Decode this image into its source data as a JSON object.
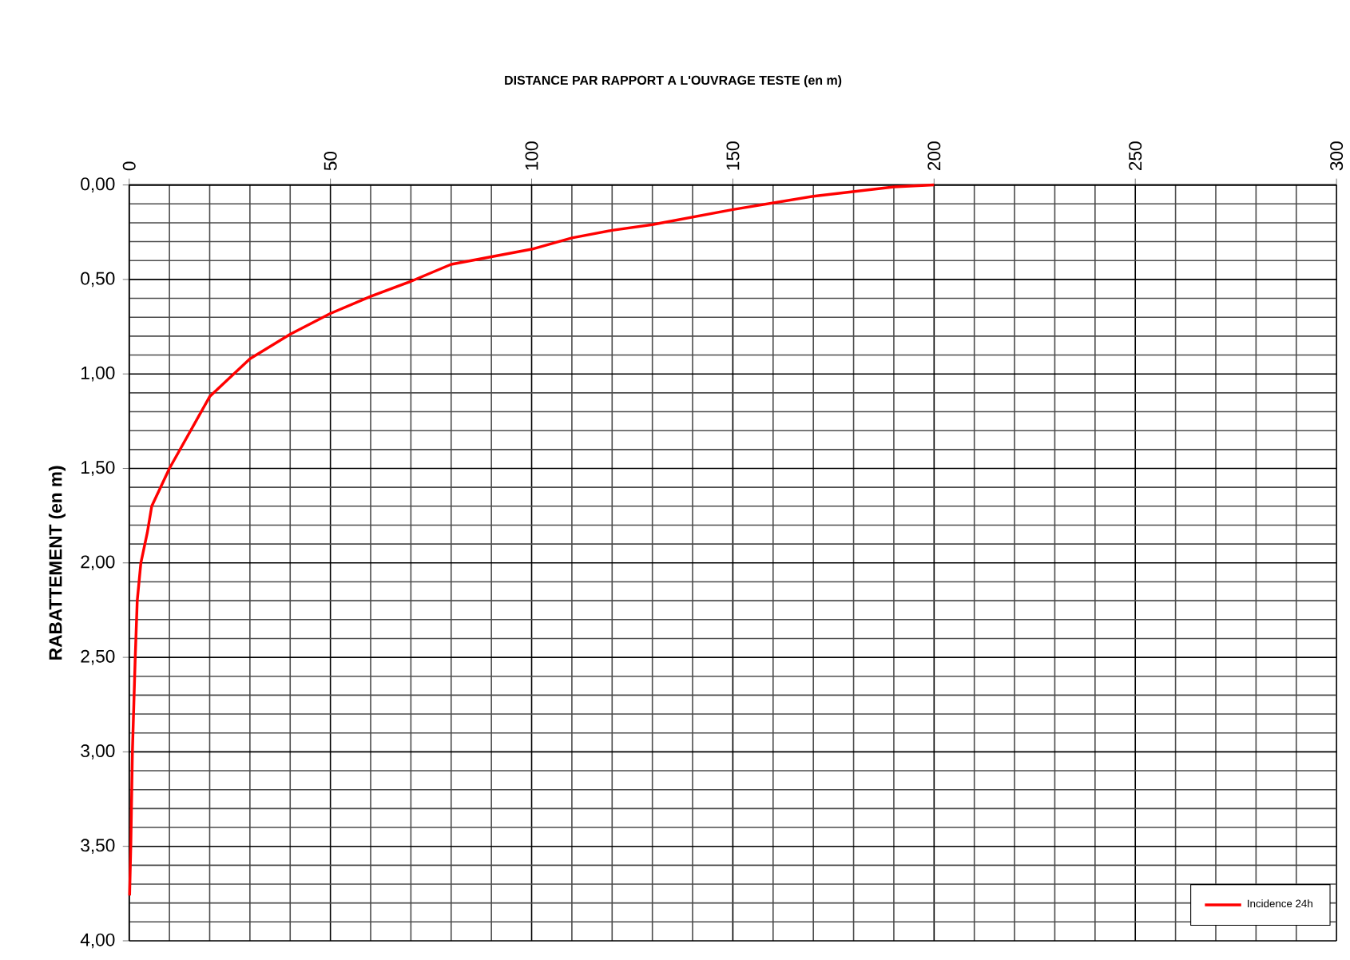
{
  "chart_data": {
    "type": "line",
    "title": "DISTANCE PAR RAPPORT A L'OUVRAGE TESTE (en m)",
    "ylabel": "RABATTEMENT (en m)",
    "series": [
      {
        "name": "Incidence 24h",
        "color": "#ff0000",
        "x": [
          200,
          190,
          170,
          150,
          130,
          120,
          110,
          100,
          80,
          70,
          60,
          50,
          40,
          30,
          20,
          10,
          5.6,
          4.5,
          2.9,
          2.0,
          1.5,
          0.8,
          0.4,
          0.1
        ],
        "values": [
          0,
          0.01,
          0.06,
          0.13,
          0.21,
          0.24,
          0.28,
          0.34,
          0.42,
          0.51,
          0.59,
          0.68,
          0.79,
          0.92,
          1.12,
          1.5,
          1.7,
          1.84,
          2.0,
          2.2,
          2.5,
          3.0,
          3.5,
          3.76
        ]
      }
    ],
    "xlim": [
      0,
      300
    ],
    "xticks": [
      0,
      50,
      100,
      150,
      200,
      250,
      300
    ],
    "ylim": [
      4,
      0
    ],
    "yticks": [
      {
        "value": 0,
        "label": "0,00"
      },
      {
        "value": 0.5,
        "label": "0,50"
      },
      {
        "value": 1,
        "label": "1,00"
      },
      {
        "value": 1.5,
        "label": "1,50"
      },
      {
        "value": 2,
        "label": "2,00"
      },
      {
        "value": 2.5,
        "label": "2,50"
      },
      {
        "value": 3,
        "label": "3,00"
      },
      {
        "value": 3.5,
        "label": "3,50"
      },
      {
        "value": 4,
        "label": "4,00"
      }
    ],
    "grid": true,
    "legend": "bottom right",
    "marker": "none",
    "line_style": "solid"
  }
}
